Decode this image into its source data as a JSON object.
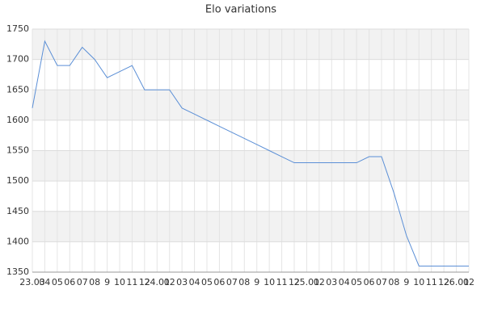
{
  "chart_data": {
    "type": "line",
    "title": "Elo variations",
    "categories": [
      "23.03",
      "04",
      "05",
      "06",
      "07",
      "08",
      "9",
      "10",
      "11",
      "12",
      "24.01",
      "02",
      "03",
      "04",
      "05",
      "06",
      "07",
      "08",
      "9",
      "10",
      "11",
      "12",
      "25.01",
      "02",
      "03",
      "04",
      "05",
      "06",
      "07",
      "08",
      "9",
      "10",
      "11",
      "12",
      "26.01",
      "02"
    ],
    "series": [
      {
        "name": "Elo",
        "color": "#5b8fd6",
        "values": [
          1620,
          1730,
          1690,
          1690,
          1720,
          1700,
          1670,
          1680,
          1690,
          1650,
          1650,
          1650,
          1620,
          1610,
          1600,
          1590,
          1580,
          1570,
          1560,
          1550,
          1540,
          1530,
          1530,
          1530,
          1530,
          1530,
          1530,
          1540,
          1540,
          1480,
          1410,
          1360,
          1360,
          1360,
          1360,
          1360
        ]
      }
    ],
    "ylim": [
      1350,
      1750
    ],
    "yticks": [
      1350,
      1400,
      1450,
      1500,
      1550,
      1600,
      1650,
      1700,
      1750
    ],
    "grid": true
  }
}
